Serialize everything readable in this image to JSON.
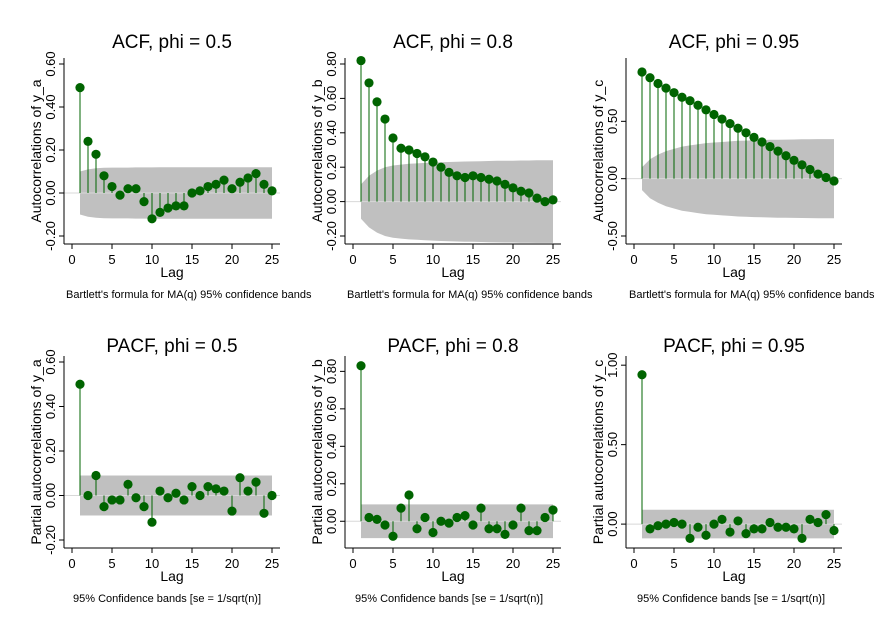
{
  "chart_data": [
    {
      "type": "bar",
      "title": "ACF, phi = 0.5",
      "xlabel": "Lag",
      "ylabel": "Autocorrelations of y_a",
      "note": "Bartlett's formula for MA(q) 95% confidence bands",
      "xlim": [
        0,
        25
      ],
      "ylim": [
        -0.2,
        0.6
      ],
      "x_ticks": [
        0,
        5,
        10,
        15,
        20,
        25
      ],
      "y_ticks": [
        -0.2,
        0,
        0.2,
        0.4,
        0.6
      ],
      "y_tick_labels": [
        "-0.20",
        "0.00",
        "0.20",
        "0.40",
        "0.60"
      ],
      "lags": [
        1,
        2,
        3,
        4,
        5,
        6,
        7,
        8,
        9,
        10,
        11,
        12,
        13,
        14,
        15,
        16,
        17,
        18,
        19,
        20,
        21,
        22,
        23,
        24,
        25
      ],
      "values": [
        0.49,
        0.24,
        0.18,
        0.08,
        0.03,
        -0.01,
        0.02,
        0.02,
        -0.04,
        -0.12,
        -0.09,
        -0.07,
        -0.06,
        -0.06,
        0.0,
        0.01,
        0.03,
        0.04,
        0.06,
        0.02,
        0.05,
        0.07,
        0.09,
        0.04,
        0.01
      ],
      "band": [
        0.1,
        0.11,
        0.115,
        0.117,
        0.118,
        0.118,
        0.118,
        0.119,
        0.119,
        0.119,
        0.12,
        0.12,
        0.12,
        0.12,
        0.12,
        0.12,
        0.12,
        0.12,
        0.12,
        0.12,
        0.12,
        0.12,
        0.12,
        0.12,
        0.12
      ]
    },
    {
      "type": "bar",
      "title": "ACF, phi = 0.8",
      "xlabel": "Lag",
      "ylabel": "Autocorrelations of y_b",
      "note": "Bartlett's formula for MA(q) 95% confidence bands",
      "xlim": [
        0,
        25
      ],
      "ylim": [
        -0.2,
        0.8
      ],
      "x_ticks": [
        0,
        5,
        10,
        15,
        20,
        25
      ],
      "y_ticks": [
        -0.2,
        0,
        0.2,
        0.4,
        0.6,
        0.8
      ],
      "y_tick_labels": [
        "-0.20",
        "0.00",
        "0.20",
        "0.40",
        "0.60",
        "0.80"
      ],
      "lags": [
        1,
        2,
        3,
        4,
        5,
        6,
        7,
        8,
        9,
        10,
        11,
        12,
        13,
        14,
        15,
        16,
        17,
        18,
        19,
        20,
        21,
        22,
        23,
        24,
        25
      ],
      "values": [
        0.82,
        0.69,
        0.58,
        0.48,
        0.37,
        0.31,
        0.3,
        0.28,
        0.26,
        0.23,
        0.2,
        0.17,
        0.15,
        0.14,
        0.15,
        0.14,
        0.13,
        0.12,
        0.1,
        0.08,
        0.06,
        0.05,
        0.02,
        0.0,
        0.01
      ],
      "band": [
        0.1,
        0.15,
        0.18,
        0.2,
        0.21,
        0.215,
        0.22,
        0.222,
        0.225,
        0.227,
        0.229,
        0.23,
        0.232,
        0.233,
        0.234,
        0.235,
        0.236,
        0.237,
        0.238,
        0.238,
        0.239,
        0.239,
        0.24,
        0.24,
        0.24
      ]
    },
    {
      "type": "bar",
      "title": "ACF, phi = 0.95",
      "xlabel": "Lag",
      "ylabel": "Autocorrelations of y_c",
      "note": "Bartlett's formula for MA(q) 95% confidence bands",
      "xlim": [
        0,
        25
      ],
      "ylim": [
        -0.5,
        1.0
      ],
      "x_ticks": [
        0,
        5,
        10,
        15,
        20,
        25
      ],
      "y_ticks": [
        -0.5,
        0,
        0.5
      ],
      "y_tick_labels": [
        "-0.50",
        "0.00",
        "0.50"
      ],
      "lags": [
        1,
        2,
        3,
        4,
        5,
        6,
        7,
        8,
        9,
        10,
        11,
        12,
        13,
        14,
        15,
        16,
        17,
        18,
        19,
        20,
        21,
        22,
        23,
        24,
        25
      ],
      "values": [
        0.93,
        0.88,
        0.83,
        0.79,
        0.75,
        0.71,
        0.68,
        0.64,
        0.6,
        0.56,
        0.52,
        0.48,
        0.44,
        0.4,
        0.36,
        0.32,
        0.28,
        0.24,
        0.2,
        0.16,
        0.12,
        0.08,
        0.04,
        0.01,
        -0.02
      ],
      "band": [
        0.1,
        0.17,
        0.21,
        0.24,
        0.26,
        0.28,
        0.29,
        0.3,
        0.31,
        0.315,
        0.32,
        0.325,
        0.33,
        0.332,
        0.335,
        0.337,
        0.339,
        0.34,
        0.341,
        0.342,
        0.343,
        0.344,
        0.345,
        0.345,
        0.345
      ]
    },
    {
      "type": "bar",
      "title": "PACF, phi = 0.5",
      "xlabel": "Lag",
      "ylabel": "Partial autocorrelations of y_a",
      "note": "95% Confidence bands [se = 1/sqrt(n)]",
      "xlim": [
        0,
        25
      ],
      "ylim": [
        -0.2,
        0.6
      ],
      "x_ticks": [
        0,
        5,
        10,
        15,
        20,
        25
      ],
      "y_ticks": [
        -0.2,
        0,
        0.2,
        0.4,
        0.6
      ],
      "y_tick_labels": [
        "-0.20",
        "0.00",
        "0.20",
        "0.40",
        "0.60"
      ],
      "lags": [
        1,
        2,
        3,
        4,
        5,
        6,
        7,
        8,
        9,
        10,
        11,
        12,
        13,
        14,
        15,
        16,
        17,
        18,
        19,
        20,
        21,
        22,
        23,
        24,
        25
      ],
      "values": [
        0.5,
        0.0,
        0.09,
        -0.05,
        -0.02,
        -0.02,
        0.05,
        -0.01,
        -0.05,
        -0.12,
        0.02,
        -0.01,
        0.01,
        -0.02,
        0.04,
        0.0,
        0.04,
        0.03,
        0.02,
        -0.07,
        0.08,
        0.02,
        0.06,
        -0.08,
        0.0
      ],
      "band": [
        0.09,
        0.09,
        0.09,
        0.09,
        0.09,
        0.09,
        0.09,
        0.09,
        0.09,
        0.09,
        0.09,
        0.09,
        0.09,
        0.09,
        0.09,
        0.09,
        0.09,
        0.09,
        0.09,
        0.09,
        0.09,
        0.09,
        0.09,
        0.09,
        0.09
      ]
    },
    {
      "type": "bar",
      "title": "PACF, phi = 0.8",
      "xlabel": "Lag",
      "ylabel": "Partial autocorrelations of y_b",
      "note": "95% Confidence bands [se = 1/sqrt(n)]",
      "xlim": [
        0,
        25
      ],
      "ylim": [
        -0.1,
        0.85
      ],
      "x_ticks": [
        0,
        5,
        10,
        15,
        20,
        25
      ],
      "y_ticks": [
        0,
        0.2,
        0.4,
        0.6,
        0.8
      ],
      "y_tick_labels": [
        "0.00",
        "0.20",
        "0.40",
        "0.60",
        "0.80"
      ],
      "lags": [
        1,
        2,
        3,
        4,
        5,
        6,
        7,
        8,
        9,
        10,
        11,
        12,
        13,
        14,
        15,
        16,
        17,
        18,
        19,
        20,
        21,
        22,
        23,
        24,
        25
      ],
      "values": [
        0.83,
        0.02,
        0.01,
        -0.02,
        -0.08,
        0.07,
        0.14,
        -0.04,
        0.02,
        -0.06,
        0.0,
        -0.01,
        0.02,
        0.03,
        -0.02,
        0.07,
        -0.04,
        -0.04,
        -0.07,
        -0.02,
        0.07,
        -0.05,
        -0.05,
        0.02,
        0.06
      ],
      "band": [
        0.09,
        0.09,
        0.09,
        0.09,
        0.09,
        0.09,
        0.09,
        0.09,
        0.09,
        0.09,
        0.09,
        0.09,
        0.09,
        0.09,
        0.09,
        0.09,
        0.09,
        0.09,
        0.09,
        0.09,
        0.09,
        0.09,
        0.09,
        0.09,
        0.09
      ]
    },
    {
      "type": "bar",
      "title": "PACF, phi = 0.95",
      "xlabel": "Lag",
      "ylabel": "Partial autocorrelations of y_c",
      "note": "95% Confidence bands [se = 1/sqrt(n)]",
      "xlim": [
        0,
        25
      ],
      "ylim": [
        -0.1,
        1.02
      ],
      "x_ticks": [
        0,
        5,
        10,
        15,
        20,
        25
      ],
      "y_ticks": [
        0,
        0.5,
        1.0
      ],
      "y_tick_labels": [
        "0.00",
        "0.50",
        "1.00"
      ],
      "lags": [
        1,
        2,
        3,
        4,
        5,
        6,
        7,
        8,
        9,
        10,
        11,
        12,
        13,
        14,
        15,
        16,
        17,
        18,
        19,
        20,
        21,
        22,
        23,
        24,
        25
      ],
      "values": [
        0.94,
        -0.03,
        -0.01,
        0.0,
        0.01,
        0.0,
        -0.09,
        -0.02,
        -0.07,
        0.0,
        0.03,
        -0.05,
        0.02,
        -0.06,
        -0.03,
        -0.03,
        0.01,
        -0.02,
        -0.02,
        -0.03,
        -0.09,
        0.03,
        0.01,
        0.06,
        -0.04
      ],
      "band": [
        0.09,
        0.09,
        0.09,
        0.09,
        0.09,
        0.09,
        0.09,
        0.09,
        0.09,
        0.09,
        0.09,
        0.09,
        0.09,
        0.09,
        0.09,
        0.09,
        0.09,
        0.09,
        0.09,
        0.09,
        0.09,
        0.09,
        0.09,
        0.09,
        0.09
      ]
    }
  ],
  "colors": {
    "marker": "#006400",
    "spike": "#006400",
    "band": "#c0c0c0",
    "axis": "#000000"
  }
}
